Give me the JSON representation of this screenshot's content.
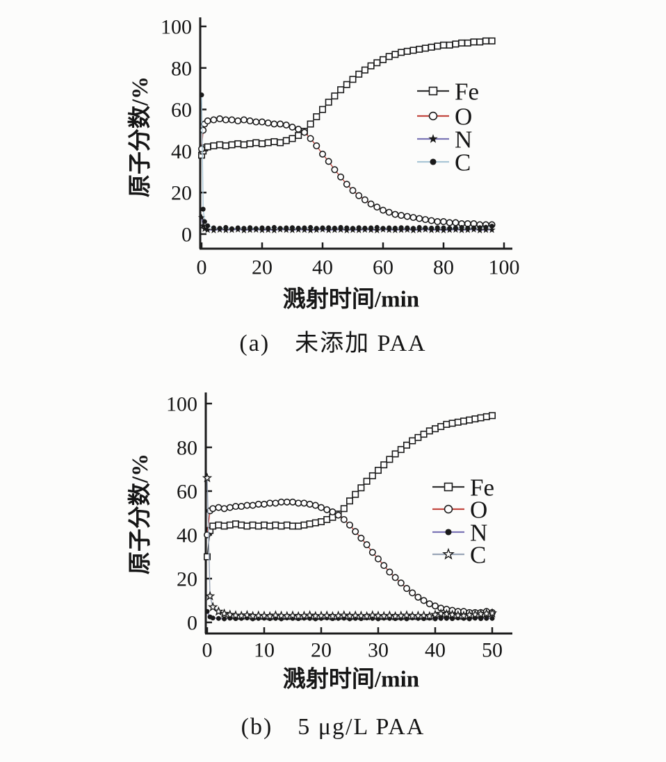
{
  "figure": {
    "caption_a": "(a)　未添加 PAA",
    "caption_b": "(b)　5 μg/L PAA"
  },
  "colors": {
    "axis": "#1c1c1c",
    "fe_line": "#303030",
    "o_line": "#c2463e",
    "n_line": "#7a74b5",
    "c_line_a": "#a9c6d6",
    "c_line_b": "#98a4b6",
    "marker_outline": "#1a1a1a"
  },
  "chart_data": [
    {
      "id": "a",
      "type": "scatter",
      "title": "",
      "xlabel": "溅射时间/min",
      "ylabel": "原子分数/%",
      "xlim": [
        0,
        100
      ],
      "ylim": [
        0,
        100
      ],
      "xticks": [
        0,
        20,
        40,
        60,
        80,
        100
      ],
      "yticks": [
        0,
        20,
        40,
        60,
        80,
        100
      ],
      "grid": false,
      "legend_position": "right-upper",
      "x": [
        0,
        0.5,
        1,
        2,
        4,
        6,
        8,
        10,
        12,
        14,
        16,
        18,
        20,
        22,
        24,
        26,
        28,
        30,
        32,
        34,
        36,
        38,
        40,
        42,
        44,
        46,
        48,
        50,
        52,
        54,
        56,
        58,
        60,
        62,
        64,
        66,
        68,
        70,
        72,
        74,
        76,
        78,
        80,
        82,
        84,
        86,
        88,
        90,
        92,
        94,
        96
      ],
      "series": [
        {
          "name": "Fe",
          "marker": "open-square",
          "line_color": "#303030",
          "values": [
            38,
            40,
            41.5,
            42,
            42.5,
            43,
            42.5,
            43,
            43.5,
            43,
            43.5,
            44,
            43.5,
            44,
            44.5,
            44,
            45,
            46,
            47.5,
            49.5,
            53,
            56.5,
            60,
            63.5,
            66.5,
            69.5,
            72,
            74.5,
            77,
            79,
            81,
            82.5,
            84,
            85.5,
            86.5,
            87.5,
            88,
            88.5,
            89,
            89.5,
            90,
            90.5,
            91,
            91,
            91.5,
            92,
            92,
            92.5,
            92.5,
            93,
            93
          ]
        },
        {
          "name": "O",
          "marker": "open-circle",
          "line_color": "#c2463e",
          "values": [
            41,
            50,
            53,
            54.5,
            55,
            55.5,
            55,
            55,
            54.5,
            55,
            54.5,
            54,
            54,
            53.5,
            53,
            53,
            52.5,
            51.5,
            50.5,
            49,
            46,
            42.5,
            38.5,
            35,
            31,
            27.5,
            24,
            21,
            18.5,
            16.5,
            14.5,
            13,
            11.5,
            10.5,
            9.5,
            9,
            8.5,
            8,
            7.5,
            7,
            6.5,
            6,
            6,
            5.5,
            5.5,
            5,
            5,
            5,
            4.5,
            4.5,
            4.5
          ]
        },
        {
          "name": "N",
          "marker": "filled-star",
          "line_color": "#7a74b5",
          "values": [
            8,
            4,
            2.5,
            2,
            1.8,
            2.1,
            1.9,
            2,
            2.2,
            1.8,
            2,
            2.1,
            1.9,
            2,
            1.8,
            2.2,
            2,
            1.9,
            2.1,
            2,
            1.8,
            2,
            2.2,
            1.9,
            2,
            2.1,
            1.8,
            2,
            1.9,
            2.1,
            2,
            1.8,
            2.2,
            2,
            1.9,
            2,
            2.1,
            1.8,
            2,
            2.2,
            1.9,
            2,
            1.8,
            2,
            2.1,
            1.9,
            2,
            2.2,
            1.8,
            2,
            2
          ]
        },
        {
          "name": "C",
          "marker": "filled-circle",
          "line_color": "#a9c6d6",
          "values": [
            67,
            12,
            6,
            4,
            3,
            2.8,
            3.2,
            2.6,
            3,
            2.8,
            3.1,
            2.7,
            3,
            2.9,
            3.2,
            2.8,
            3,
            3.1,
            2.9,
            3,
            3.2,
            2.8,
            3,
            3.1,
            2.9,
            3.2,
            3,
            2.8,
            3.1,
            2.9,
            3,
            3.2,
            2.8,
            3,
            2.9,
            3.1,
            3,
            2.8,
            3.2,
            3,
            2.9,
            3.1,
            3,
            2.8,
            3,
            3.2,
            2.9,
            3,
            3.1,
            3.3,
            3.8
          ]
        }
      ]
    },
    {
      "id": "b",
      "type": "scatter",
      "title": "",
      "xlabel": "溅射时间/min",
      "ylabel": "原子分数/%",
      "xlim": [
        0,
        50
      ],
      "ylim": [
        0,
        100
      ],
      "xticks": [
        0,
        10,
        20,
        30,
        40,
        50
      ],
      "yticks": [
        0,
        20,
        40,
        60,
        80,
        100
      ],
      "grid": false,
      "legend_position": "right-middle",
      "x": [
        0,
        0.5,
        1,
        2,
        3,
        4,
        5,
        6,
        7,
        8,
        9,
        10,
        11,
        12,
        13,
        14,
        15,
        16,
        17,
        18,
        19,
        20,
        21,
        22,
        23,
        24,
        25,
        26,
        27,
        28,
        29,
        30,
        31,
        32,
        33,
        34,
        35,
        36,
        37,
        38,
        39,
        40,
        41,
        42,
        43,
        44,
        45,
        46,
        47,
        48,
        49,
        50
      ],
      "series": [
        {
          "name": "Fe",
          "marker": "open-square",
          "line_color": "#303030",
          "values": [
            30,
            42,
            44,
            44.5,
            44,
            44.5,
            45,
            44.5,
            44,
            44.5,
            44,
            44.5,
            44,
            44.5,
            44,
            44.5,
            44,
            44,
            44.5,
            45,
            45.5,
            46,
            47,
            48,
            49.5,
            52,
            55.5,
            58.5,
            61.5,
            64.5,
            67,
            69.5,
            72,
            74.5,
            77,
            79,
            81,
            83,
            84.5,
            86,
            87.5,
            88.5,
            89.5,
            90.5,
            91,
            91.5,
            92,
            92.5,
            93,
            93.5,
            94,
            94.5
          ]
        },
        {
          "name": "O",
          "marker": "open-circle",
          "line_color": "#c2463e",
          "values": [
            40,
            51,
            52,
            52.5,
            52,
            52.5,
            53,
            53,
            53.5,
            53.5,
            54,
            54,
            54.5,
            54.5,
            55,
            55,
            55,
            54.5,
            54.5,
            54,
            53.5,
            52.5,
            51.5,
            50.5,
            49,
            47,
            44.5,
            41.5,
            38.5,
            35.5,
            32,
            29,
            26,
            23,
            20.5,
            18,
            15.5,
            13.5,
            11.5,
            10,
            8.5,
            7.5,
            6.5,
            6,
            5.5,
            5,
            5,
            4.5,
            4.5,
            4.5,
            5,
            4.5
          ]
        },
        {
          "name": "N",
          "marker": "filled-circle",
          "line_color": "#7a74b5",
          "values": [
            5,
            2.5,
            2,
            1.8,
            1.6,
            1.9,
            1.7,
            1.8,
            2,
            1.6,
            1.8,
            1.9,
            1.7,
            1.8,
            1.6,
            2,
            1.8,
            1.7,
            1.9,
            1.8,
            1.6,
            1.8,
            2,
            1.7,
            1.8,
            1.9,
            1.6,
            1.8,
            1.7,
            2,
            1.8,
            1.6,
            1.9,
            1.8,
            1.7,
            1.8,
            1.6,
            2,
            1.8,
            1.7,
            1.9,
            1.6,
            1.8,
            1.8,
            1.7,
            2,
            1.8,
            1.6,
            1.9,
            1.7,
            1.8,
            1.8
          ]
        },
        {
          "name": "C",
          "marker": "open-star",
          "line_color": "#98a4b6",
          "values": [
            66,
            12,
            7,
            5,
            4,
            3.5,
            3.2,
            3,
            3.3,
            2.9,
            3.1,
            3,
            2.8,
            3.2,
            3,
            2.9,
            3.1,
            2.8,
            3,
            3.2,
            2.9,
            3,
            3.1,
            2.8,
            3,
            3.2,
            2.9,
            3.1,
            3,
            2.8,
            3.2,
            3,
            2.9,
            3.1,
            2.8,
            3,
            3.2,
            2.9,
            3,
            3.1,
            2.8,
            3.5,
            4,
            3.8,
            3.5,
            3.2,
            3,
            3.4,
            3.6,
            3.8,
            4,
            4.2
          ]
        }
      ]
    }
  ]
}
